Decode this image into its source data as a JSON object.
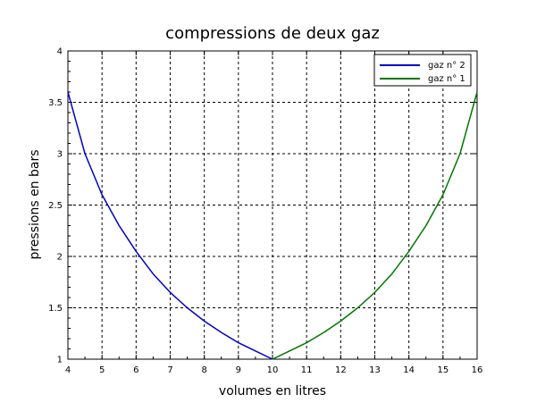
{
  "chart_data": {
    "type": "line",
    "title": "compressions de deux gaz",
    "xlabel": "volumes en litres",
    "ylabel": "pressions en bars",
    "xlim": [
      4,
      16
    ],
    "ylim": [
      1,
      4
    ],
    "x_ticks": [
      "4",
      "5",
      "6",
      "7",
      "8",
      "9",
      "10",
      "11",
      "12",
      "13",
      "14",
      "15",
      "16"
    ],
    "y_ticks": [
      "1",
      "1.5",
      "2",
      "2.5",
      "3",
      "3.5",
      "4"
    ],
    "grid": true,
    "legend_position": "top-right",
    "series": [
      {
        "name": "gaz n° 2",
        "color": "#0000cc",
        "x": [
          4,
          4.5,
          5,
          5.5,
          6,
          6.5,
          7,
          7.5,
          8,
          8.5,
          9,
          9.5,
          10
        ],
        "y": [
          3.6,
          3.0,
          2.6,
          2.3,
          2.05,
          1.83,
          1.65,
          1.5,
          1.37,
          1.26,
          1.16,
          1.08,
          1.0
        ]
      },
      {
        "name": "gaz n° 1",
        "color": "#007700",
        "x": [
          10,
          10.5,
          11,
          11.5,
          12,
          12.5,
          13,
          13.5,
          14,
          14.5,
          15,
          15.5,
          16
        ],
        "y": [
          1.0,
          1.08,
          1.16,
          1.26,
          1.37,
          1.5,
          1.65,
          1.83,
          2.05,
          2.3,
          2.6,
          3.0,
          3.6
        ]
      }
    ]
  }
}
